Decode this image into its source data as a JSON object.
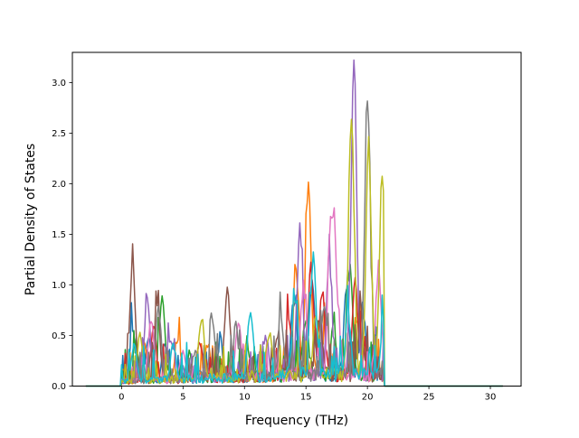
{
  "chart_data": {
    "type": "line",
    "title": "",
    "xlabel": "Frequency (THz)",
    "ylabel": "Partial Density of States",
    "xlim": [
      -4.0,
      32.5
    ],
    "ylim": [
      0.0,
      3.3
    ],
    "xticks": [
      0,
      5,
      10,
      15,
      20,
      25,
      30
    ],
    "yticks": [
      0.0,
      0.5,
      1.0,
      1.5,
      2.0,
      2.5,
      3.0
    ],
    "xtick_labels": [
      "0",
      "5",
      "10",
      "15",
      "20",
      "25",
      "30"
    ],
    "ytick_labels": [
      "0.0",
      "0.5",
      "1.0",
      "1.5",
      "2.0",
      "2.5",
      "3.0"
    ],
    "grid": false,
    "legend": "none",
    "x_range_plotted": [
      -2.9,
      31.0
    ],
    "nonzero_band": [
      0.0,
      21.4
    ],
    "colors": [
      "#1f77b4",
      "#ff7f0e",
      "#2ca02c",
      "#d62728",
      "#9467bd",
      "#8c564b",
      "#e377c2",
      "#7f7f7f",
      "#bcbd22",
      "#17becf"
    ],
    "series": [
      {
        "color": "#1f77b4",
        "peaks": [
          [
            0.9,
            0.52
          ],
          [
            2.2,
            0.45
          ],
          [
            3.5,
            0.35
          ],
          [
            8.0,
            0.3
          ],
          [
            14.0,
            0.72
          ],
          [
            15.5,
            0.9
          ],
          [
            18.3,
            0.85
          ],
          [
            19.6,
            0.7
          ]
        ]
      },
      {
        "color": "#ff7f0e",
        "peaks": [
          [
            1.8,
            0.4
          ],
          [
            4.6,
            0.36
          ],
          [
            7.0,
            0.32
          ],
          [
            14.2,
            1.05
          ],
          [
            15.2,
            1.96
          ],
          [
            16.6,
            0.55
          ],
          [
            19.2,
            0.6
          ]
        ]
      },
      {
        "color": "#2ca02c",
        "peaks": [
          [
            1.2,
            0.3
          ],
          [
            3.3,
            0.82
          ],
          [
            5.5,
            0.25
          ],
          [
            10.2,
            0.35
          ],
          [
            15.0,
            0.6
          ],
          [
            17.2,
            0.45
          ],
          [
            18.6,
            1.0
          ]
        ]
      },
      {
        "color": "#d62728",
        "peaks": [
          [
            2.6,
            0.55
          ],
          [
            6.4,
            0.35
          ],
          [
            13.6,
            0.55
          ],
          [
            15.4,
            1.05
          ],
          [
            16.3,
            0.85
          ],
          [
            19.0,
            0.95
          ]
        ]
      },
      {
        "color": "#9467bd",
        "peaks": [
          [
            2.1,
            0.82
          ],
          [
            4.0,
            0.4
          ],
          [
            11.7,
            0.42
          ],
          [
            14.5,
            1.44
          ],
          [
            16.9,
            1.14
          ],
          [
            18.9,
            3.13
          ]
        ]
      },
      {
        "color": "#8c564b",
        "peaks": [
          [
            0.9,
            1.16
          ],
          [
            2.9,
            0.72
          ],
          [
            8.6,
            0.85
          ],
          [
            12.6,
            0.35
          ],
          [
            16.1,
            0.55
          ],
          [
            19.5,
            0.5
          ]
        ]
      },
      {
        "color": "#e377c2",
        "peaks": [
          [
            2.4,
            0.6
          ],
          [
            5.0,
            0.3
          ],
          [
            9.5,
            0.55
          ],
          [
            14.8,
            0.9
          ],
          [
            17.0,
            1.32
          ],
          [
            17.4,
            1.0
          ],
          [
            20.9,
            1.07
          ]
        ]
      },
      {
        "color": "#7f7f7f",
        "peaks": [
          [
            3.0,
            0.7
          ],
          [
            6.0,
            0.3
          ],
          [
            7.4,
            0.58
          ],
          [
            9.3,
            0.5
          ],
          [
            13.0,
            0.55
          ],
          [
            16.5,
            0.7
          ],
          [
            20.0,
            2.69
          ]
        ]
      },
      {
        "color": "#bcbd22",
        "peaks": [
          [
            1.5,
            0.45
          ],
          [
            6.5,
            0.6
          ],
          [
            12.0,
            0.4
          ],
          [
            15.8,
            0.65
          ],
          [
            18.7,
            2.53
          ],
          [
            20.1,
            2.22
          ],
          [
            21.2,
            1.97
          ]
        ]
      },
      {
        "color": "#17becf",
        "peaks": [
          [
            1.0,
            0.35
          ],
          [
            4.2,
            0.33
          ],
          [
            10.5,
            0.59
          ],
          [
            14.1,
            0.75
          ],
          [
            15.6,
            1.2
          ],
          [
            18.4,
            0.6
          ],
          [
            21.3,
            0.58
          ]
        ]
      }
    ]
  }
}
